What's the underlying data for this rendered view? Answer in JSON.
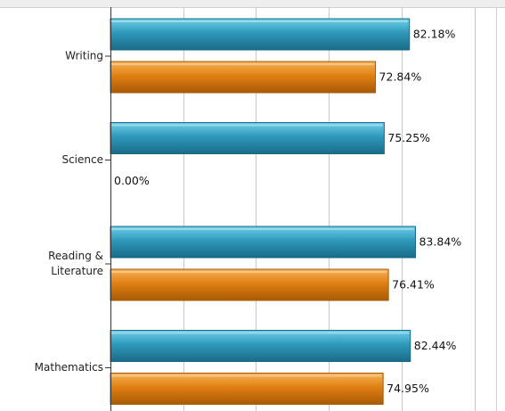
{
  "chart_data": {
    "type": "bar",
    "orientation": "horizontal",
    "categories": [
      "Writing",
      "Science",
      "Reading & Literature",
      "Mathematics"
    ],
    "category_display_lines": [
      [
        "Writing"
      ],
      [
        "Science"
      ],
      [
        "Reading &",
        "Literature"
      ],
      [
        "Mathematics"
      ]
    ],
    "series": [
      {
        "values": [
          82.18,
          75.25,
          83.84,
          82.44
        ],
        "value_labels": [
          "82.18%",
          "75.25%",
          "83.84%",
          "82.44%"
        ]
      },
      {
        "values": [
          72.84,
          0.0,
          76.41,
          74.95
        ],
        "value_labels": [
          "72.84%",
          "0.00%",
          "76.41%",
          "74.95%"
        ]
      }
    ],
    "xlim": [
      0,
      100
    ],
    "grid": true,
    "colors": {
      "series_blue": "#2e98bb",
      "series_blue_light": "#6fd0ea",
      "series_blue_dark": "#1a6b87",
      "series_orange": "#e07f12",
      "series_orange_light": "#f7b257",
      "series_orange_dark": "#a85a06",
      "gridline": "#c8c8c8",
      "axis": "#333333",
      "frame": "#cfcfcf"
    }
  }
}
